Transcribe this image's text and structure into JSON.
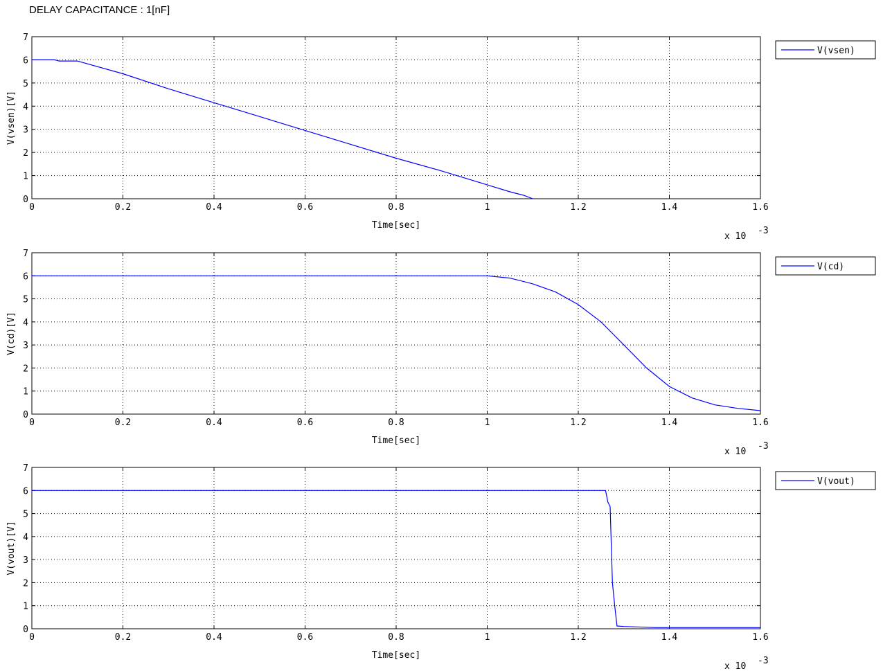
{
  "page": {
    "title": "DELAY CAPACITANCE : 1[nF]"
  },
  "chart_data": [
    {
      "type": "line",
      "xlabel": "Time[sec]",
      "ylabel": "V(vsen)[V]",
      "x_multiplier_label": "x 10",
      "x_multiplier_exponent": "-3",
      "xlim": [
        0,
        1.6
      ],
      "ylim": [
        0,
        7
      ],
      "xticks": [
        "0",
        "0.2",
        "0.4",
        "0.6",
        "0.8",
        "1",
        "1.2",
        "1.4",
        "1.6"
      ],
      "yticks": [
        "0",
        "1",
        "2",
        "3",
        "4",
        "5",
        "6",
        "7"
      ],
      "grid": true,
      "legend_position": "outside-top-right",
      "series": [
        {
          "name": "V(vsen)",
          "color": "#0000ff",
          "x": [
            0,
            0.05,
            0.06,
            0.1,
            0.2,
            0.3,
            0.4,
            0.5,
            0.6,
            0.7,
            0.8,
            0.9,
            1.0,
            1.05,
            1.08,
            1.1
          ],
          "y": [
            6.0,
            6.0,
            5.95,
            5.95,
            5.4,
            4.75,
            4.15,
            3.55,
            2.95,
            2.35,
            1.75,
            1.2,
            0.6,
            0.3,
            0.15,
            0.0
          ]
        }
      ]
    },
    {
      "type": "line",
      "xlabel": "Time[sec]",
      "ylabel": "V(cd)[V]",
      "x_multiplier_label": "x 10",
      "x_multiplier_exponent": "-3",
      "xlim": [
        0,
        1.6
      ],
      "ylim": [
        0,
        7
      ],
      "xticks": [
        "0",
        "0.2",
        "0.4",
        "0.6",
        "0.8",
        "1",
        "1.2",
        "1.4",
        "1.6"
      ],
      "yticks": [
        "0",
        "1",
        "2",
        "3",
        "4",
        "5",
        "6",
        "7"
      ],
      "grid": true,
      "legend_position": "outside-top-right",
      "series": [
        {
          "name": "V(cd)",
          "color": "#0000ff",
          "x": [
            0,
            1.0,
            1.05,
            1.1,
            1.15,
            1.2,
            1.25,
            1.3,
            1.35,
            1.4,
            1.45,
            1.5,
            1.55,
            1.6
          ],
          "y": [
            6.0,
            6.0,
            5.9,
            5.65,
            5.3,
            4.75,
            4.0,
            3.0,
            2.0,
            1.2,
            0.7,
            0.4,
            0.25,
            0.15
          ]
        }
      ]
    },
    {
      "type": "line",
      "xlabel": "Time[sec]",
      "ylabel": "V(vout)[V]",
      "x_multiplier_label": "x 10",
      "x_multiplier_exponent": "-3",
      "xlim": [
        0,
        1.6
      ],
      "ylim": [
        0,
        7
      ],
      "xticks": [
        "0",
        "0.2",
        "0.4",
        "0.6",
        "0.8",
        "1",
        "1.2",
        "1.4",
        "1.6"
      ],
      "yticks": [
        "0",
        "1",
        "2",
        "3",
        "4",
        "5",
        "6",
        "7"
      ],
      "grid": true,
      "legend_position": "outside-top-right",
      "series": [
        {
          "name": "V(vout)",
          "color": "#0000ff",
          "x": [
            0,
            1.26,
            1.265,
            1.27,
            1.272,
            1.275,
            1.28,
            1.285,
            1.3,
            1.37,
            1.6
          ],
          "y": [
            6.0,
            6.0,
            5.5,
            5.3,
            4.0,
            2.0,
            1.0,
            0.12,
            0.1,
            0.05,
            0.05
          ]
        }
      ]
    }
  ]
}
